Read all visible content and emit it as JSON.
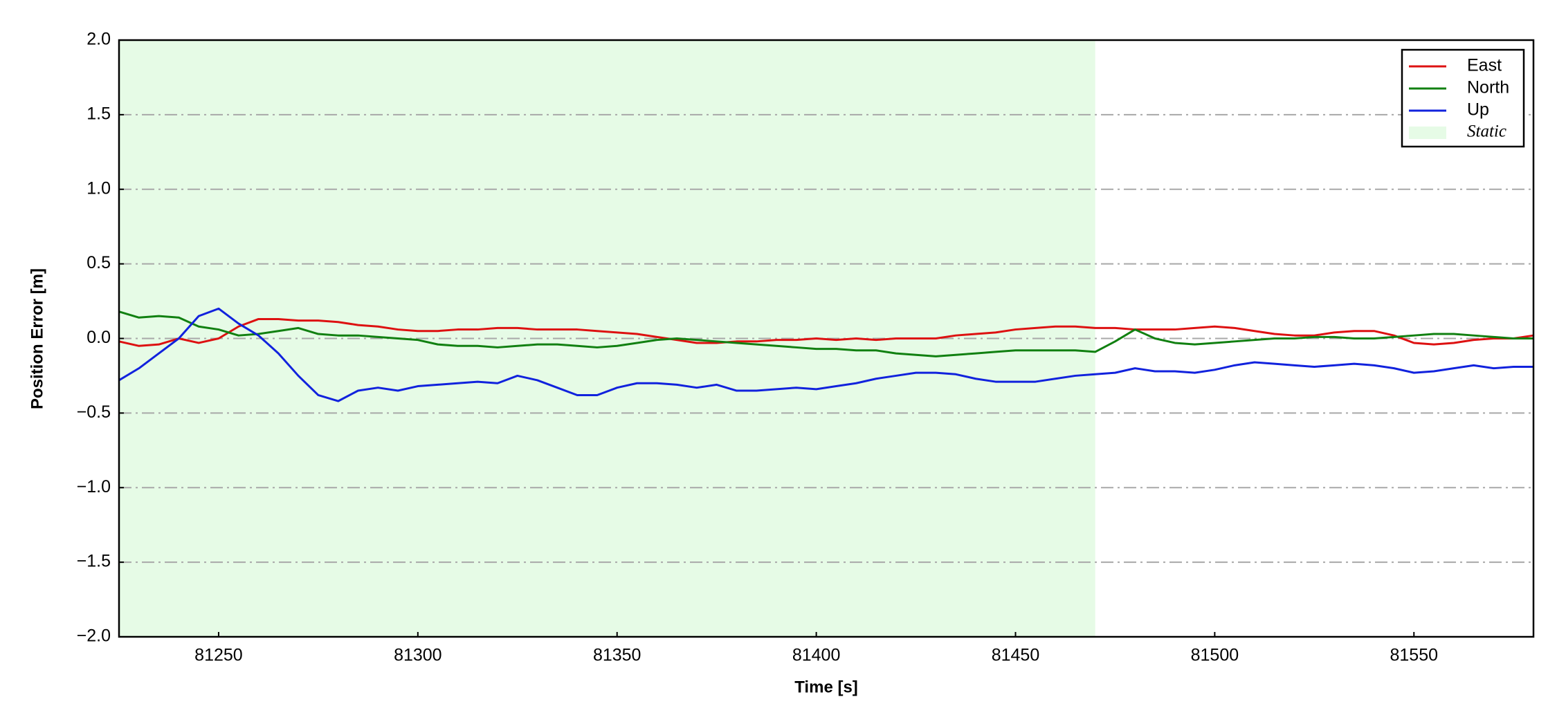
{
  "chart_data": {
    "type": "line",
    "xlabel": "Time [s]",
    "ylabel": "Position Error [m]",
    "x": [
      81225,
      81230,
      81235,
      81240,
      81245,
      81250,
      81255,
      81260,
      81265,
      81270,
      81275,
      81280,
      81285,
      81290,
      81295,
      81300,
      81305,
      81310,
      81315,
      81320,
      81325,
      81330,
      81335,
      81340,
      81345,
      81350,
      81355,
      81360,
      81365,
      81370,
      81375,
      81380,
      81385,
      81390,
      81395,
      81400,
      81405,
      81410,
      81415,
      81420,
      81425,
      81430,
      81435,
      81440,
      81445,
      81450,
      81455,
      81460,
      81465,
      81470,
      81475,
      81480,
      81485,
      81490,
      81495,
      81500,
      81505,
      81510,
      81515,
      81520,
      81525,
      81530,
      81535,
      81540,
      81545,
      81550,
      81555,
      81560,
      81565,
      81570,
      81575,
      81580
    ],
    "series": [
      {
        "name": "East",
        "color": "#dd1111",
        "values": [
          -0.02,
          -0.05,
          -0.04,
          0.0,
          -0.03,
          0.0,
          0.08,
          0.13,
          0.13,
          0.12,
          0.12,
          0.11,
          0.09,
          0.08,
          0.06,
          0.05,
          0.05,
          0.06,
          0.06,
          0.07,
          0.07,
          0.06,
          0.06,
          0.06,
          0.05,
          0.04,
          0.03,
          0.01,
          -0.01,
          -0.03,
          -0.03,
          -0.02,
          -0.02,
          -0.01,
          -0.01,
          0.0,
          -0.01,
          0.0,
          -0.01,
          0.0,
          0.0,
          0.0,
          0.02,
          0.03,
          0.04,
          0.06,
          0.07,
          0.08,
          0.08,
          0.07,
          0.07,
          0.06,
          0.06,
          0.06,
          0.07,
          0.08,
          0.07,
          0.05,
          0.03,
          0.02,
          0.02,
          0.04,
          0.05,
          0.05,
          0.02,
          -0.03,
          -0.04,
          -0.03,
          -0.01,
          0.0,
          0.0,
          0.02
        ]
      },
      {
        "name": "North",
        "color": "#118011",
        "values": [
          0.18,
          0.14,
          0.15,
          0.14,
          0.08,
          0.06,
          0.02,
          0.03,
          0.05,
          0.07,
          0.03,
          0.02,
          0.02,
          0.01,
          0.0,
          -0.01,
          -0.04,
          -0.05,
          -0.05,
          -0.06,
          -0.05,
          -0.04,
          -0.04,
          -0.05,
          -0.06,
          -0.05,
          -0.03,
          -0.01,
          0.0,
          -0.01,
          -0.02,
          -0.03,
          -0.04,
          -0.05,
          -0.06,
          -0.07,
          -0.07,
          -0.08,
          -0.08,
          -0.1,
          -0.11,
          -0.12,
          -0.11,
          -0.1,
          -0.09,
          -0.08,
          -0.08,
          -0.08,
          -0.08,
          -0.09,
          -0.02,
          0.06,
          0.0,
          -0.03,
          -0.04,
          -0.03,
          -0.02,
          -0.01,
          0.0,
          0.0,
          0.01,
          0.01,
          0.0,
          0.0,
          0.01,
          0.02,
          0.03,
          0.03,
          0.02,
          0.01,
          0.0,
          0.0
        ]
      },
      {
        "name": "Up",
        "color": "#1122dd",
        "values": [
          -0.28,
          -0.2,
          -0.1,
          0.0,
          0.15,
          0.2,
          0.1,
          0.02,
          -0.1,
          -0.25,
          -0.38,
          -0.42,
          -0.35,
          -0.33,
          -0.35,
          -0.32,
          -0.31,
          -0.3,
          -0.29,
          -0.3,
          -0.25,
          -0.28,
          -0.33,
          -0.38,
          -0.38,
          -0.33,
          -0.3,
          -0.3,
          -0.31,
          -0.33,
          -0.31,
          -0.35,
          -0.35,
          -0.34,
          -0.33,
          -0.34,
          -0.32,
          -0.3,
          -0.27,
          -0.25,
          -0.23,
          -0.23,
          -0.24,
          -0.27,
          -0.29,
          -0.29,
          -0.29,
          -0.27,
          -0.25,
          -0.24,
          -0.23,
          -0.2,
          -0.22,
          -0.22,
          -0.23,
          -0.21,
          -0.18,
          -0.16,
          -0.17,
          -0.18,
          -0.19,
          -0.18,
          -0.17,
          -0.18,
          -0.2,
          -0.23,
          -0.22,
          -0.2,
          -0.18,
          -0.2,
          -0.19,
          -0.19
        ]
      }
    ],
    "span": {
      "name": "Static",
      "color": "#e6fbe6",
      "x": [
        81225,
        81470
      ]
    },
    "xlim": [
      81225,
      81580
    ],
    "ylim": [
      -2,
      2
    ],
    "xticks": [
      81250,
      81300,
      81350,
      81400,
      81450,
      81500,
      81550
    ],
    "yticks": [
      {
        "value": -2,
        "label": "−2.0"
      },
      {
        "value": -1.5,
        "label": "−1.5"
      },
      {
        "value": -1,
        "label": "−1.0"
      },
      {
        "value": -0.5,
        "label": "−0.5"
      },
      {
        "value": 0,
        "label": "0.0"
      },
      {
        "value": 0.5,
        "label": "0.5"
      },
      {
        "value": 1,
        "label": "1.0"
      },
      {
        "value": 1.5,
        "label": "1.5"
      },
      {
        "value": 2,
        "label": "2.0"
      }
    ],
    "grid": true,
    "legend": "upper right"
  }
}
